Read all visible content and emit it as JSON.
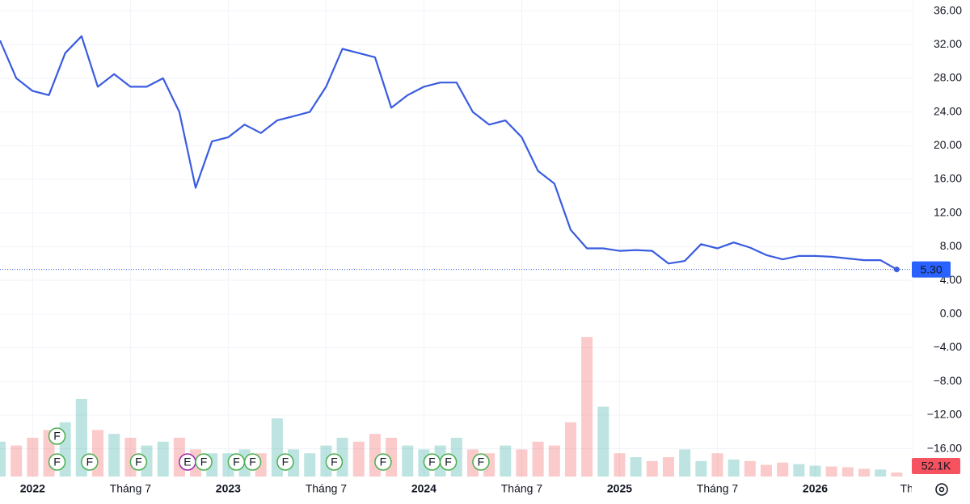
{
  "chart_data": {
    "type": "line",
    "x": [
      "2021-11",
      "2021-12",
      "2022-01",
      "2022-02",
      "2022-03",
      "2022-04",
      "2022-05",
      "2022-06",
      "2022-07",
      "2022-08",
      "2022-09",
      "2022-10",
      "2022-11",
      "2022-12",
      "2023-01",
      "2023-02",
      "2023-03",
      "2023-04",
      "2023-05",
      "2023-06",
      "2023-07",
      "2023-08",
      "2023-09",
      "2023-10",
      "2023-11",
      "2023-12",
      "2024-01",
      "2024-02",
      "2024-03",
      "2024-04",
      "2024-05",
      "2024-06",
      "2024-07",
      "2024-08",
      "2024-09",
      "2024-10",
      "2024-11",
      "2024-12",
      "2025-01",
      "2025-02",
      "2025-03",
      "2025-04",
      "2025-05",
      "2025-06",
      "2025-07",
      "2025-08",
      "2025-09",
      "2025-10",
      "2025-11",
      "2025-12",
      "2026-01",
      "2026-02",
      "2026-03",
      "2026-04",
      "2026-05",
      "2026-06"
    ],
    "series": [
      {
        "color": "#3a5ce0",
        "values": [
          32.5,
          28,
          26.5,
          26,
          31,
          33,
          27,
          28.5,
          27,
          27,
          28,
          24,
          15,
          20.5,
          21,
          22.5,
          21.5,
          23,
          23.5,
          24,
          27,
          31.5,
          31,
          30.5,
          24.5,
          26,
          27,
          27.5,
          27.5,
          24,
          22.5,
          23,
          21,
          17,
          15.5,
          10,
          7.8,
          7.8,
          7.5,
          7.6,
          7.5,
          6,
          6.3,
          8.3,
          7.8,
          8.5,
          7.9,
          7,
          6.5,
          6.9,
          6.9,
          6.8,
          6.6,
          6.4,
          6.4,
          5.3
        ],
        "value_labels": [
          null,
          null,
          null,
          null,
          null,
          null,
          null,
          null,
          null,
          null,
          null,
          null,
          null,
          null,
          null,
          null,
          null,
          null,
          null,
          null,
          null,
          null,
          null,
          null,
          null,
          null,
          null,
          null,
          null,
          null,
          null,
          null,
          null,
          null,
          null,
          null,
          null,
          null,
          null,
          null,
          null,
          null,
          null,
          null,
          null,
          null,
          null,
          null,
          null,
          null,
          null,
          null,
          null,
          null,
          null,
          "5.30"
        ]
      }
    ],
    "volume": {
      "values": [
        450,
        400,
        500,
        600,
        700,
        1000,
        600,
        550,
        500,
        400,
        450,
        500,
        350,
        300,
        300,
        350,
        300,
        750,
        350,
        300,
        400,
        500,
        450,
        550,
        500,
        400,
        350,
        400,
        500,
        350,
        300,
        400,
        350,
        450,
        400,
        700,
        1800,
        900,
        300,
        250,
        200,
        250,
        350,
        200,
        300,
        220,
        200,
        150,
        180,
        160,
        140,
        130,
        120,
        100,
        90,
        52.1
      ],
      "value_labels": [
        null,
        null,
        null,
        null,
        null,
        null,
        null,
        null,
        null,
        null,
        null,
        null,
        null,
        null,
        null,
        null,
        null,
        null,
        null,
        null,
        null,
        null,
        null,
        null,
        null,
        null,
        null,
        null,
        null,
        null,
        null,
        null,
        null,
        null,
        null,
        null,
        null,
        null,
        null,
        null,
        null,
        null,
        null,
        null,
        null,
        null,
        null,
        null,
        null,
        null,
        null,
        null,
        null,
        null,
        null,
        "52.1K"
      ]
    },
    "events": [
      {
        "x": "2022-02",
        "label": "F"
      },
      {
        "x": "2022-02",
        "label": "F"
      },
      {
        "x": "2022-04",
        "label": "F"
      },
      {
        "x": "2022-07",
        "label": "F"
      },
      {
        "x": "2022-10",
        "label": "E"
      },
      {
        "x": "2022-11",
        "label": "F"
      },
      {
        "x": "2023-01",
        "label": "F"
      },
      {
        "x": "2023-02",
        "label": "F"
      },
      {
        "x": "2023-04",
        "label": "F"
      },
      {
        "x": "2023-07",
        "label": "F"
      },
      {
        "x": "2023-10",
        "label": "F"
      },
      {
        "x": "2024-01",
        "label": "F"
      },
      {
        "x": "2024-02",
        "label": "F"
      },
      {
        "x": "2024-04",
        "label": "F"
      }
    ],
    "xticks": [
      {
        "value": "2022-01",
        "label": "2022"
      },
      {
        "value": "2022-07",
        "label": "Tháng 7"
      },
      {
        "value": "2023-01",
        "label": "2023"
      },
      {
        "value": "2023-07",
        "label": "Tháng 7"
      },
      {
        "value": "2024-01",
        "label": "2024"
      },
      {
        "value": "2024-07",
        "label": "Tháng 7"
      },
      {
        "value": "2025-01",
        "label": "2025"
      },
      {
        "value": "2025-07",
        "label": "Tháng 7"
      },
      {
        "value": "2026-01",
        "label": "2026"
      },
      {
        "value": "2026-07",
        "label": "Thán"
      }
    ],
    "ylim": [
      -19.3,
      37.3
    ],
    "yticks": [
      {
        "value": 36,
        "label": "36.00"
      },
      {
        "value": 32,
        "label": "32.00"
      },
      {
        "value": 28,
        "label": "28.00"
      },
      {
        "value": 24,
        "label": "24.00"
      },
      {
        "value": 20,
        "label": "20.00"
      },
      {
        "value": 16,
        "label": "16.00"
      },
      {
        "value": 12,
        "label": "12.00"
      },
      {
        "value": 8,
        "label": "8.00"
      },
      {
        "value": 4,
        "label": "4.00"
      },
      {
        "value": 0,
        "label": "0.00"
      },
      {
        "value": -4,
        "label": "−4.00"
      },
      {
        "value": -8,
        "label": "−8.00"
      },
      {
        "value": -12,
        "label": "−12.00"
      },
      {
        "value": -16,
        "label": "−16.00"
      }
    ],
    "grid": true
  }
}
